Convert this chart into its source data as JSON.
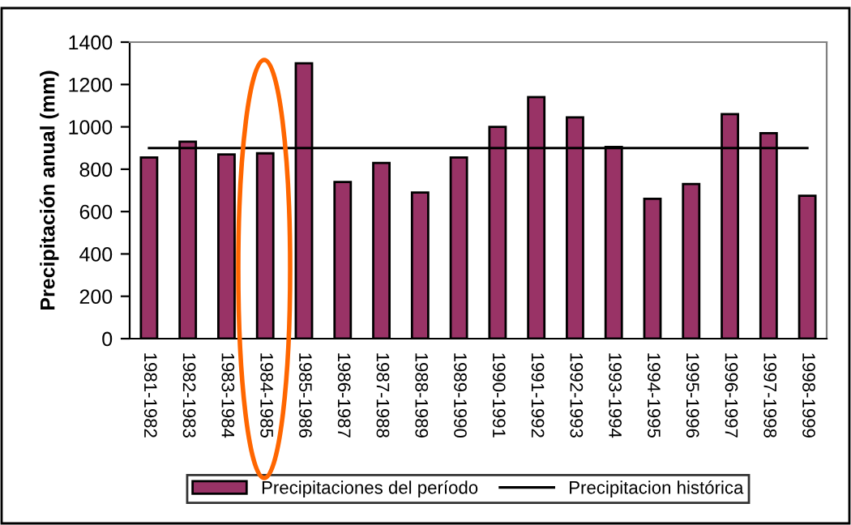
{
  "chart_data": {
    "type": "bar",
    "ylabel": "Precipitación anual (mm)",
    "categories": [
      "1981-1982",
      "1982-1983",
      "1983-1984",
      "1984-1985",
      "1985-1986",
      "1986-1987",
      "1987-1988",
      "1988-1989",
      "1989-1990",
      "1990-1991",
      "1991-1992",
      "1992-1993",
      "1993-1994",
      "1994-1995",
      "1995-1996",
      "1996-1997",
      "1997-1998",
      "1998-1999"
    ],
    "series": [
      {
        "name": "Precipitaciones del período",
        "color": "#993366",
        "values": [
          855,
          930,
          870,
          875,
          1300,
          740,
          830,
          690,
          855,
          1000,
          1140,
          1045,
          905,
          660,
          730,
          1060,
          970,
          675
        ]
      },
      {
        "name": "Precipitacion histórica",
        "type": "line",
        "color": "#000000",
        "values": [
          900,
          900,
          900,
          900,
          900,
          900,
          900,
          900,
          900,
          900,
          900,
          900,
          900,
          900,
          900,
          900,
          900,
          900
        ]
      }
    ],
    "ylim": [
      0,
      1400
    ],
    "yticks": [
      0,
      200,
      400,
      600,
      800,
      1000,
      1200,
      1400
    ],
    "grid": false,
    "legend": "bottom"
  }
}
